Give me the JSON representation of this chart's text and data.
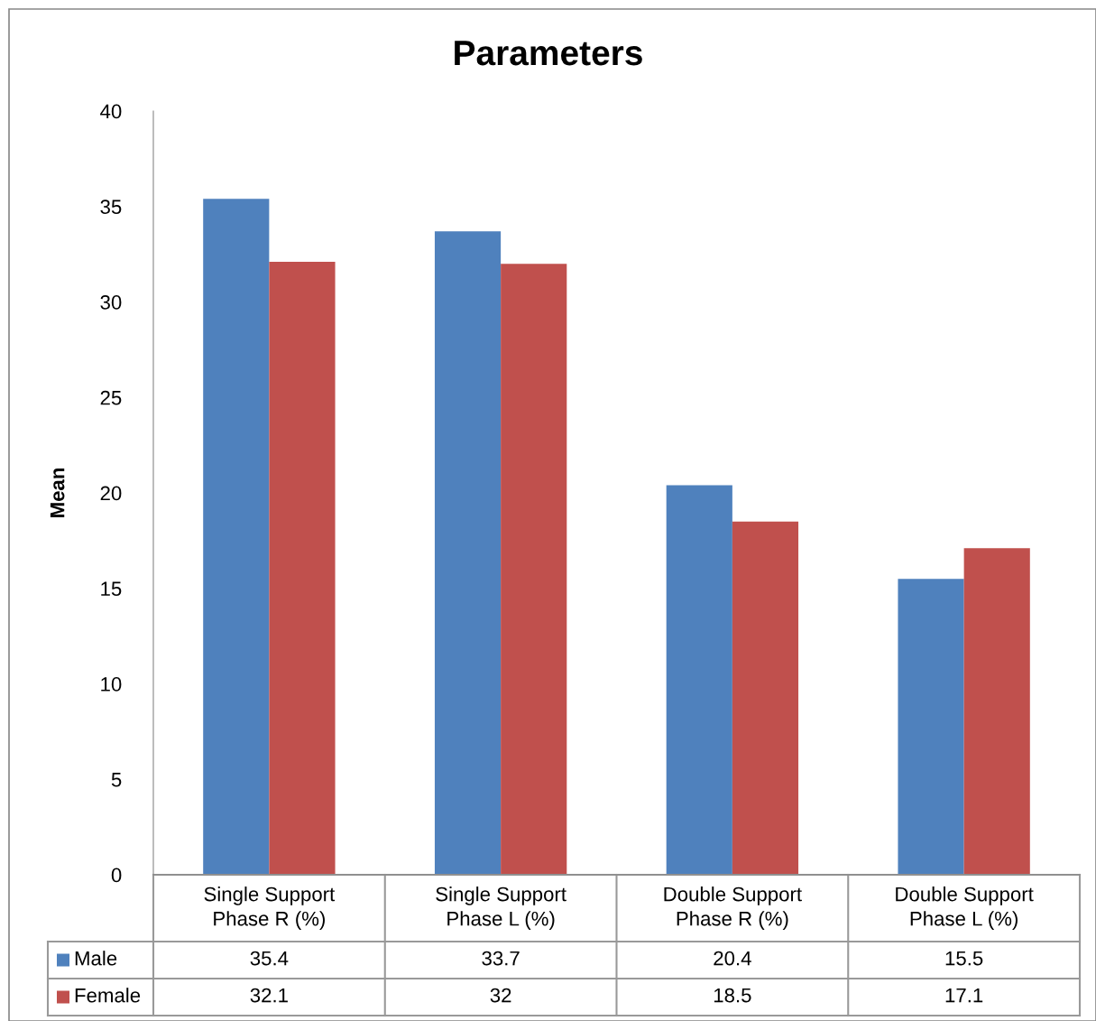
{
  "chart_data": {
    "type": "bar",
    "title": "Parameters",
    "ylabel": "Mean",
    "categories": [
      "Single Support Phase R (%)",
      "Single Support Phase L (%)",
      "Double Support Phase R (%)",
      "Double Support Phase L (%)"
    ],
    "series": [
      {
        "name": "Male",
        "color": "#4f81bd",
        "values": [
          35.4,
          33.7,
          20.4,
          15.5
        ]
      },
      {
        "name": "Female",
        "color": "#c0504d",
        "values": [
          32.1,
          32,
          18.5,
          17.1
        ]
      }
    ],
    "ylim": [
      0,
      40
    ],
    "yticks": [
      0,
      5,
      10,
      15,
      20,
      25,
      30,
      35,
      40
    ],
    "grid": false,
    "legend": "bottom",
    "data_labels": true
  }
}
